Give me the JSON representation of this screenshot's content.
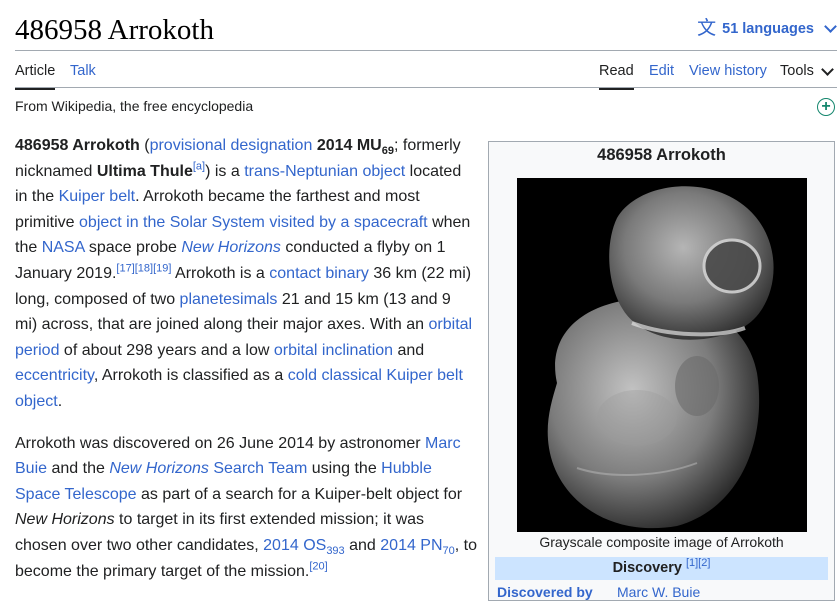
{
  "page": {
    "title": "486958 Arrokoth",
    "languages_label": "51 languages",
    "tagline": "From Wikipedia, the free encyclopedia"
  },
  "tabs": {
    "left": [
      {
        "label": "Article"
      },
      {
        "label": "Talk"
      }
    ],
    "right": [
      {
        "label": "Read"
      },
      {
        "label": "Edit"
      },
      {
        "label": "View history"
      },
      {
        "label": "Tools"
      }
    ]
  },
  "article": {
    "p1": {
      "bold_name": "486958 Arrokoth",
      "t1": " (",
      "l_prov": "provisional designation",
      "t2": " ",
      "desig_main": "2014 MU",
      "desig_sub": "69",
      "t3": "; formerly nicknamed ",
      "nickname": "Ultima Thule",
      "ref_a": "[a]",
      "t4": ") is a ",
      "l_tno": "trans-Neptunian object",
      "t5": " located in the ",
      "l_kuiper": "Kuiper belt",
      "t6": ". Arrokoth became the farthest and most primitive ",
      "l_obj": "object in the Solar System visited by a spacecraft",
      "t7": " when the ",
      "l_nasa": "NASA",
      "t8": " space probe ",
      "l_nh": "New Horizons",
      "t9": " conducted a flyby on 1 January 2019.",
      "refs1": "[17][18][19]",
      "t10": " Arrokoth is a ",
      "l_contact": "contact binary",
      "t11": " 36 km (22 mi) long, composed of two ",
      "l_plan": "planetesimals",
      "t12": " 21 and 15 km (13 and 9 mi) across, that are joined along their major axes. With an ",
      "l_orbper": "orbital period",
      "t13": " of about 298 years and a low ",
      "l_incl": "orbital inclination",
      "t14": " and ",
      "l_ecc": "eccentricity",
      "t15": ", Arrokoth is classified as a ",
      "l_ckbo": "cold classical Kuiper belt object",
      "t16": "."
    },
    "p2": {
      "t1": "Arrokoth was discovered on 26 June 2014 by astronomer ",
      "l_buie": "Marc Buie",
      "t2": " and the ",
      "l_nhteam_italic": "New Horizons",
      "l_nhteam_rest": " Search Team",
      "t3": " using the ",
      "l_hubble": "Hubble Space Telescope",
      "t4": " as part of a search for a Kuiper-belt object for ",
      "nh_italic": "New Horizons",
      "t5": " to target in its first extended mission; it was chosen over two other candidates, ",
      "l_os_main": "2014 OS",
      "l_os_sub": "393",
      "t6": " and ",
      "l_pn_main": "2014 PN",
      "l_pn_sub": "70",
      "t7": ", to become the primary target of the mission.",
      "ref20": "[20]"
    }
  },
  "infobox": {
    "title": "486958 Arrokoth",
    "caption": "Grayscale composite image of Arrokoth",
    "section_header": "Discovery",
    "section_refs": "[1][2]",
    "row_label": "Discovered by",
    "row_value": "Marc W. Buie"
  },
  "colors": {
    "link": "#3366cc",
    "infobox_header": "#cce4ff",
    "add_icon": "#14866d"
  },
  "icons": {
    "languages": "translate-icon",
    "add": "add-circle-icon"
  }
}
